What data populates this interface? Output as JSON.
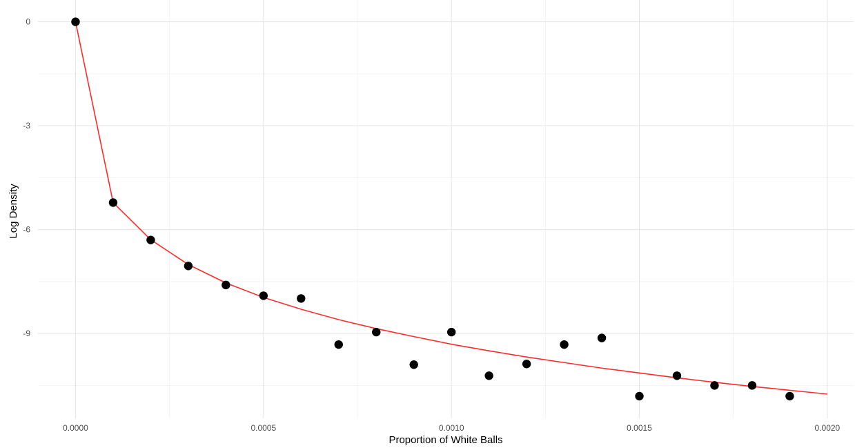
{
  "chart_data": {
    "type": "scatter",
    "title": "",
    "xlabel": "Proportion of White Balls",
    "ylabel": "Log Density",
    "xlim": [
      -0.0001,
      0.00207
    ],
    "ylim": [
      -11.45,
      0.63
    ],
    "x_ticks": [
      0,
      0.0005,
      0.001,
      0.0015,
      0.002
    ],
    "x_tick_labels": [
      "0.0000",
      "0.0005",
      "0.0010",
      "0.0015",
      "0.0020"
    ],
    "y_ticks": [
      0,
      -3,
      -6,
      -9
    ],
    "y_tick_labels": [
      "0",
      "-3",
      "-6",
      "-9"
    ],
    "grid": true,
    "legend": "none",
    "series": [
      {
        "kind": "points",
        "color": "#000000",
        "x": [
          0,
          0.0001,
          0.0002,
          0.0003,
          0.0004,
          0.0005,
          0.0006,
          0.0007,
          0.0008,
          0.0009,
          0.001,
          0.0011,
          0.0012,
          0.0013,
          0.0014,
          0.0015,
          0.0016,
          0.0017,
          0.0018,
          0.0019
        ],
        "y": [
          0,
          -5.22,
          -6.3,
          -7.05,
          -7.6,
          -7.91,
          -7.99,
          -9.32,
          -8.96,
          -9.9,
          -8.96,
          -10.22,
          -9.88,
          -9.32,
          -9.13,
          -10.81,
          -10.22,
          -10.5,
          -10.5,
          -10.81
        ]
      },
      {
        "kind": "line",
        "color": "#ff2b2b",
        "x": [
          0,
          0.0001,
          0.0002,
          0.0003,
          0.0004,
          0.0005,
          0.0006,
          0.0007,
          0.0008,
          0.0009,
          0.001,
          0.0011,
          0.0012,
          0.0013,
          0.0014,
          0.0015,
          0.0016,
          0.0017,
          0.0018,
          0.0019,
          0.002
        ],
        "y": [
          0,
          -5.22,
          -6.29,
          -7.01,
          -7.54,
          -7.96,
          -8.3,
          -8.6,
          -8.86,
          -9.09,
          -9.31,
          -9.5,
          -9.68,
          -9.84,
          -10.0,
          -10.14,
          -10.28,
          -10.41,
          -10.53,
          -10.64,
          -10.75
        ]
      }
    ]
  }
}
